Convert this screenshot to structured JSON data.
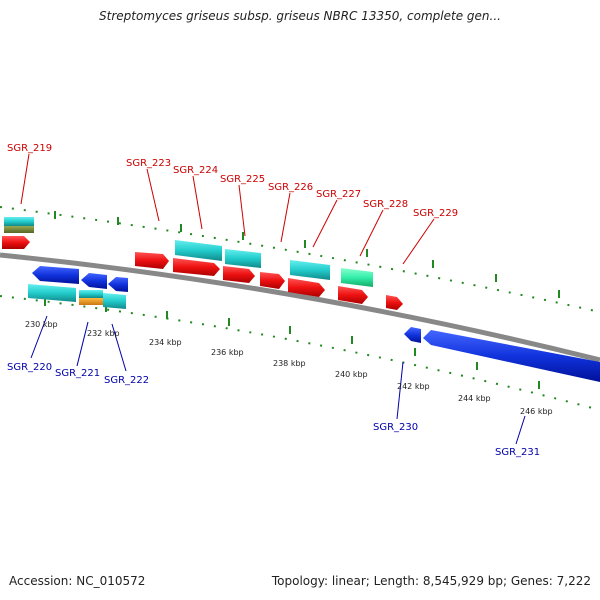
{
  "title": "Streptomyces griseus subsp. griseus NBRC 13350, complete gen...",
  "footer": {
    "accession": "Accession: NC_010572",
    "summary": "Topology: linear; Length: 8,545,929 bp; Genes: 7,222"
  },
  "colors": {
    "forward_gene": "#ee1111",
    "reverse_gene": "#1133dd",
    "cyan_feature": "#22cccc",
    "teal_feature": "#33eeaa",
    "olive_feature": "#778833",
    "orange_feature": "#ee9922",
    "backbone": "#888888",
    "tick_green": "#228822",
    "forward_label": "#cc0000",
    "reverse_label": "#0000aa"
  },
  "scale_labels": [
    "230 kbp",
    "232 kbp",
    "234 kbp",
    "236 kbp",
    "238 kbp",
    "240 kbp",
    "242 kbp",
    "244 kbp",
    "246 kbp"
  ],
  "forward_labels": [
    "SGR_219",
    "SGR_223",
    "SGR_224",
    "SGR_225",
    "SGR_226",
    "SGR_227",
    "SGR_228",
    "SGR_229"
  ],
  "reverse_labels": [
    "SGR_220",
    "SGR_221",
    "SGR_222",
    "SGR_230",
    "SGR_231"
  ]
}
